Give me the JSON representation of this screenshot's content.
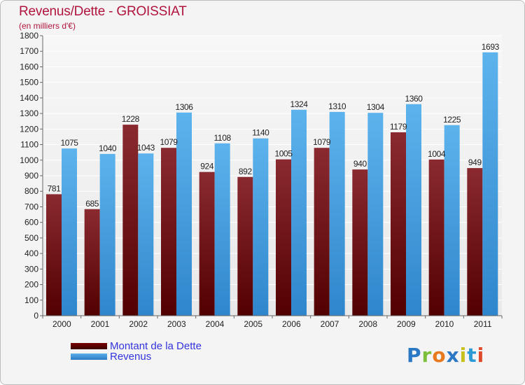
{
  "chart_data": {
    "type": "bar",
    "title": "Revenus/Dette - GROISSIAT",
    "subtitle": "(en milliers d'€)",
    "categories": [
      "2000",
      "2001",
      "2002",
      "2003",
      "2004",
      "2005",
      "2006",
      "2007",
      "2008",
      "2009",
      "2010",
      "2011"
    ],
    "series": [
      {
        "name": "Montant de la Dette",
        "color": "#7a1f25",
        "values": [
          781,
          685,
          1228,
          1079,
          924,
          892,
          1005,
          1079,
          940,
          1179,
          1004,
          949
        ]
      },
      {
        "name": "Revenus",
        "color": "#4aa3e3",
        "values": [
          1075,
          1040,
          1043,
          1306,
          1108,
          1140,
          1324,
          1310,
          1304,
          1360,
          1225,
          1693
        ]
      }
    ],
    "ylim": [
      0,
      1800
    ],
    "yticks": [
      0,
      100,
      200,
      300,
      400,
      500,
      600,
      700,
      800,
      900,
      1000,
      1100,
      1200,
      1300,
      1400,
      1500,
      1600,
      1700,
      1800
    ],
    "xlabel": "",
    "ylabel": "",
    "grid": true,
    "legend": "bottom-left"
  },
  "legend": {
    "debt_label": "Montant de la Dette",
    "revenue_label": "Revenus"
  },
  "brand": {
    "letters": [
      "P",
      "r",
      "o",
      "x",
      "i",
      "t",
      "i"
    ]
  }
}
